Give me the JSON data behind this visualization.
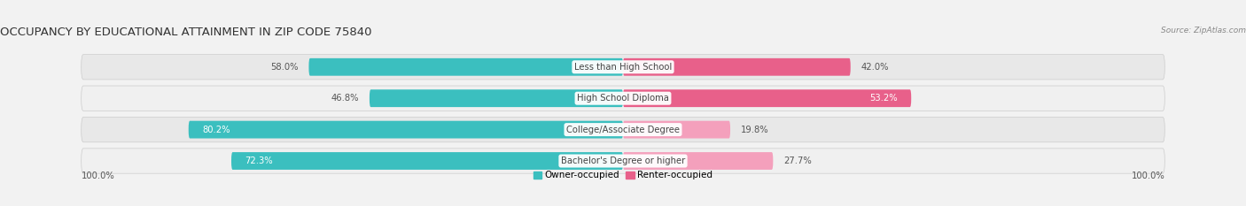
{
  "title": "OCCUPANCY BY EDUCATIONAL ATTAINMENT IN ZIP CODE 75840",
  "source": "Source: ZipAtlas.com",
  "categories": [
    "Less than High School",
    "High School Diploma",
    "College/Associate Degree",
    "Bachelor's Degree or higher"
  ],
  "owner_pct": [
    58.0,
    46.8,
    80.2,
    72.3
  ],
  "renter_pct": [
    42.0,
    53.2,
    19.8,
    27.7
  ],
  "owner_color": "#3BBFBF",
  "renter_color_strong": "#E8608A",
  "renter_color_light": "#F4A0BC",
  "bg_color": "#f2f2f2",
  "row_bg_color": "#e8e8e8",
  "row_bg_color2": "#f0f0f0",
  "title_fontsize": 9.5,
  "label_fontsize": 7.2,
  "pct_fontsize": 7.2,
  "source_fontsize": 6.5,
  "legend_fontsize": 7.5,
  "owner_label": "Owner-occupied",
  "renter_label": "Renter-occupied",
  "axis_pct": "100.0%"
}
